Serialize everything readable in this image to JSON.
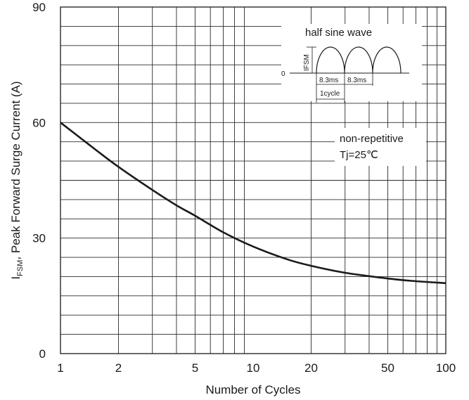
{
  "chart_data": {
    "type": "line",
    "xscale": "log",
    "xlim": [
      1,
      100
    ],
    "ylim": [
      0,
      90
    ],
    "xticks": [
      1,
      2,
      5,
      10,
      20,
      50,
      100
    ],
    "xtick_labels": [
      "1",
      "2",
      "5",
      "10",
      "20",
      "50",
      "100"
    ],
    "yticks": [
      0,
      30,
      60,
      90
    ],
    "ytick_labels": [
      "0",
      "30",
      "60",
      "90"
    ],
    "xlabel": "Number of Cycles",
    "ylabel_prefix": "I",
    "ylabel_sub": "FSM",
    "ylabel_rest": ", Peak Forward Surge Current (A)",
    "grid": true,
    "x": [
      1,
      1.5,
      2,
      3,
      4,
      5,
      7,
      10,
      15,
      20,
      30,
      50,
      70,
      100
    ],
    "y": [
      60,
      53.2,
      48.5,
      42.5,
      38.5,
      35.8,
      31.5,
      27.8,
      24.5,
      22.8,
      21.0,
      19.5,
      18.8,
      18.3
    ],
    "annotations": {
      "waveform_title": "half sine wave",
      "waveform_ifsm": "IFSM",
      "waveform_zero": "0",
      "waveform_period_1": "8.3ms",
      "waveform_period_2": "8.3ms",
      "waveform_cycle": "1cycle",
      "condition_line1": "non-repetitive",
      "condition_line2": "Tj=25℃"
    }
  }
}
